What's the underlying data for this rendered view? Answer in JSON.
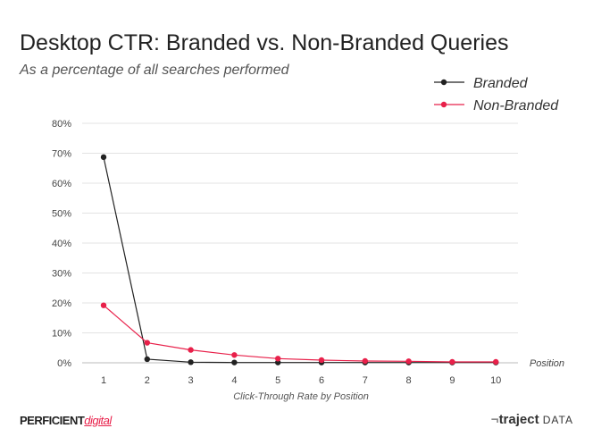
{
  "title": "Desktop CTR: Branded vs. Non-Branded Queries",
  "subtitle": "As a percentage of all searches performed",
  "footer": {
    "brand_left_main": "PERFICIENT",
    "brand_left_accent": "digital",
    "brand_right_mark": "¬",
    "brand_right_bold": "traject",
    "brand_right_small": "DATA"
  },
  "chart_data": {
    "type": "line",
    "title": "Desktop CTR: Branded vs. Non-Branded Queries",
    "subtitle": "As a percentage of all searches performed",
    "xlabel": "Click-Through Rate by Position",
    "x_axis_end_label": "Position",
    "ylabel": "",
    "x": [
      1,
      2,
      3,
      4,
      5,
      6,
      7,
      8,
      9,
      10
    ],
    "ylim": [
      0,
      80
    ],
    "yticks": [
      0,
      10,
      20,
      30,
      40,
      50,
      60,
      70,
      80
    ],
    "ytick_suffix": "%",
    "grid": true,
    "legend_position": "top-right",
    "series": [
      {
        "name": "Branded",
        "color": "#222222",
        "values": [
          68.7,
          1.2,
          0.2,
          0.1,
          0.1,
          0.1,
          0.1,
          0.1,
          0.1,
          0.1
        ]
      },
      {
        "name": "Non-Branded",
        "color": "#e8204a",
        "values": [
          19.2,
          6.7,
          4.3,
          2.6,
          1.4,
          0.9,
          0.6,
          0.5,
          0.3,
          0.3
        ]
      }
    ]
  }
}
